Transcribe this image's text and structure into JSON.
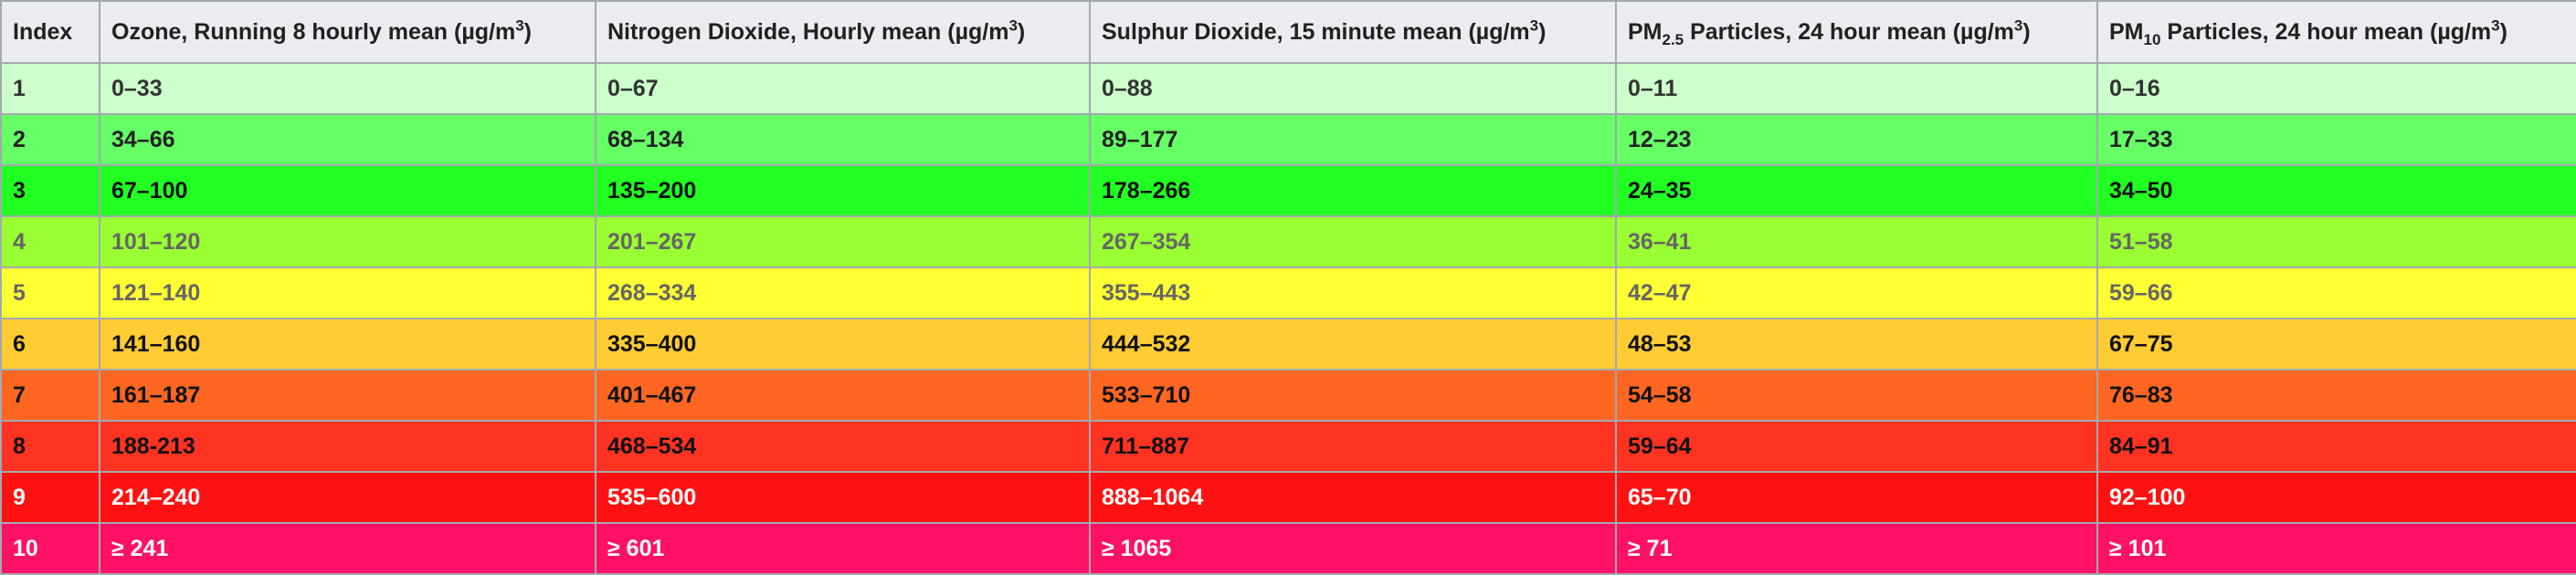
{
  "table": {
    "headers": {
      "index": "Index",
      "ozone": "Ozone, Running 8 hourly mean (µg/m",
      "ozone_sup": "3",
      "ozone_tail": ")",
      "no2": "Nitrogen Dioxide, Hourly mean (µg/m",
      "no2_sup": "3",
      "no2_tail": ")",
      "so2": "Sulphur Dioxide, 15 minute mean (µg/m",
      "so2_sup": "3",
      "so2_tail": ")",
      "pm25_pre": "PM",
      "pm25_sub": "2.5",
      "pm25": " Particles, 24 hour mean (µg/m",
      "pm25_sup": "3",
      "pm25_tail": ")",
      "pm10_pre": "PM",
      "pm10_sub": "10",
      "pm10": " Particles, 24 hour mean (µg/m",
      "pm10_sup": "3",
      "pm10_tail": ")"
    },
    "rows": [
      {
        "index": "1",
        "ozone": "0–33",
        "no2": "0–67",
        "so2": "0–88",
        "pm25": "0–11",
        "pm10": "0–16",
        "bg": "#ccffcc",
        "fg": "#333333"
      },
      {
        "index": "2",
        "ozone": "34–66",
        "no2": "68–134",
        "so2": "89–177",
        "pm25": "12–23",
        "pm10": "17–33",
        "bg": "#66ff66",
        "fg": "#222222"
      },
      {
        "index": "3",
        "ozone": "67–100",
        "no2": "135–200",
        "so2": "178–266",
        "pm25": "24–35",
        "pm10": "34–50",
        "bg": "#22ff22",
        "fg": "#111111"
      },
      {
        "index": "4",
        "ozone": "101–120",
        "no2": "201–267",
        "so2": "267–354",
        "pm25": "36–41",
        "pm10": "51–58",
        "bg": "#99ff33",
        "fg": "#666666"
      },
      {
        "index": "5",
        "ozone": "121–140",
        "no2": "268–334",
        "so2": "355–443",
        "pm25": "42–47",
        "pm10": "59–66",
        "bg": "#ffff33",
        "fg": "#666666"
      },
      {
        "index": "6",
        "ozone": "141–160",
        "no2": "335–400",
        "so2": "444–532",
        "pm25": "48–53",
        "pm10": "67–75",
        "bg": "#ffcc33",
        "fg": "#111111"
      },
      {
        "index": "7",
        "ozone": "161–187",
        "no2": "401–467",
        "so2": "533–710",
        "pm25": "54–58",
        "pm10": "76–83",
        "bg": "#ff6622",
        "fg": "#111111"
      },
      {
        "index": "8",
        "ozone": "188-213",
        "no2": "468–534",
        "so2": "711–887",
        "pm25": "59–64",
        "pm10": "84–91",
        "bg": "#ff3322",
        "fg": "#111111"
      },
      {
        "index": "9",
        "ozone": "214–240",
        "no2": "535–600",
        "so2": "888–1064",
        "pm25": "65–70",
        "pm10": "92–100",
        "bg": "#ff1111",
        "fg": "#ffffff"
      },
      {
        "index": "10",
        "ozone": "≥ 241",
        "no2": "≥ 601",
        "so2": "≥ 1065",
        "pm25": "≥ 71",
        "pm10": "≥ 101",
        "bg": "#ff1166",
        "fg": "#ffffff"
      }
    ]
  }
}
